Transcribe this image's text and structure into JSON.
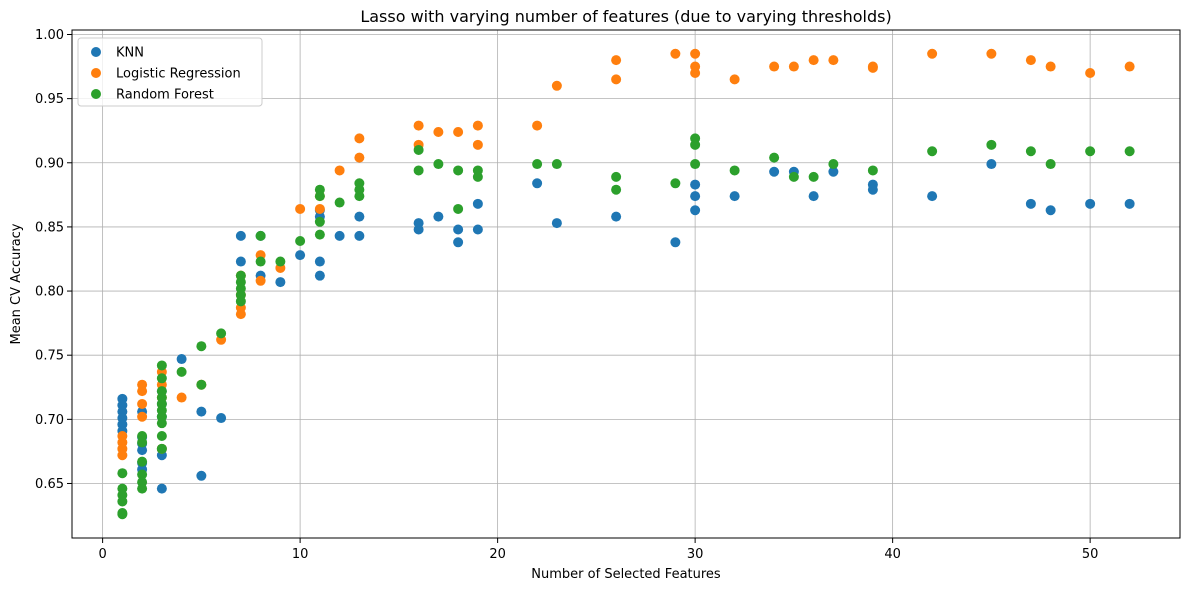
{
  "chart_data": {
    "type": "scatter",
    "title": "Lasso with varying number of features (due to varying thresholds)",
    "xlabel": "Number of Selected Features",
    "ylabel": "Mean CV Accuracy",
    "xlim": [
      -1.55,
      54.55
    ],
    "ylim": [
      0.6075,
      1.0035
    ],
    "xticks": [
      0,
      10,
      20,
      30,
      40,
      50
    ],
    "yticks": [
      0.65,
      0.7,
      0.75,
      0.8,
      0.85,
      0.9,
      0.95,
      1.0
    ],
    "xtick_labels": [
      "0",
      "10",
      "20",
      "30",
      "40",
      "50"
    ],
    "ytick_labels": [
      "0.65",
      "0.70",
      "0.75",
      "0.80",
      "0.85",
      "0.90",
      "0.95",
      "1.00"
    ],
    "grid": true,
    "legend_position": "top-left",
    "series": [
      {
        "name": "KNN",
        "color": "#1f77b4",
        "points": [
          [
            1,
            0.716
          ],
          [
            1,
            0.711
          ],
          [
            1,
            0.706
          ],
          [
            1,
            0.701
          ],
          [
            1,
            0.696
          ],
          [
            1,
            0.691
          ],
          [
            2,
            0.706
          ],
          [
            2,
            0.686
          ],
          [
            2,
            0.681
          ],
          [
            2,
            0.676
          ],
          [
            2,
            0.666
          ],
          [
            2,
            0.661
          ],
          [
            3,
            0.722
          ],
          [
            3,
            0.712
          ],
          [
            3,
            0.702
          ],
          [
            3,
            0.677
          ],
          [
            3,
            0.672
          ],
          [
            3,
            0.646
          ],
          [
            4,
            0.747
          ],
          [
            5,
            0.706
          ],
          [
            5,
            0.656
          ],
          [
            6,
            0.701
          ],
          [
            7,
            0.843
          ],
          [
            7,
            0.823
          ],
          [
            8,
            0.843
          ],
          [
            8,
            0.812
          ],
          [
            9,
            0.807
          ],
          [
            10,
            0.828
          ],
          [
            11,
            0.863
          ],
          [
            11,
            0.858
          ],
          [
            11,
            0.823
          ],
          [
            11,
            0.812
          ],
          [
            12,
            0.843
          ],
          [
            13,
            0.858
          ],
          [
            13,
            0.843
          ],
          [
            16,
            0.853
          ],
          [
            16,
            0.848
          ],
          [
            17,
            0.858
          ],
          [
            18,
            0.848
          ],
          [
            18,
            0.838
          ],
          [
            19,
            0.868
          ],
          [
            19,
            0.848
          ],
          [
            22,
            0.884
          ],
          [
            23,
            0.853
          ],
          [
            26,
            0.858
          ],
          [
            29,
            0.838
          ],
          [
            30,
            0.883
          ],
          [
            30,
            0.874
          ],
          [
            30,
            0.863
          ],
          [
            32,
            0.874
          ],
          [
            34,
            0.893
          ],
          [
            35,
            0.893
          ],
          [
            36,
            0.874
          ],
          [
            37,
            0.893
          ],
          [
            39,
            0.883
          ],
          [
            39,
            0.879
          ],
          [
            42,
            0.874
          ],
          [
            45,
            0.899
          ],
          [
            47,
            0.868
          ],
          [
            48,
            0.863
          ],
          [
            50,
            0.868
          ],
          [
            52,
            0.868
          ]
        ]
      },
      {
        "name": "Logistic Regression",
        "color": "#ff7f0e",
        "points": [
          [
            1,
            0.687
          ],
          [
            1,
            0.682
          ],
          [
            1,
            0.677
          ],
          [
            1,
            0.672
          ],
          [
            2,
            0.727
          ],
          [
            2,
            0.722
          ],
          [
            2,
            0.712
          ],
          [
            2,
            0.702
          ],
          [
            3,
            0.737
          ],
          [
            3,
            0.727
          ],
          [
            3,
            0.717
          ],
          [
            3,
            0.677
          ],
          [
            4,
            0.717
          ],
          [
            5,
            0.727
          ],
          [
            6,
            0.762
          ],
          [
            7,
            0.812
          ],
          [
            7,
            0.797
          ],
          [
            7,
            0.787
          ],
          [
            7,
            0.782
          ],
          [
            8,
            0.828
          ],
          [
            8,
            0.808
          ],
          [
            9,
            0.818
          ],
          [
            10,
            0.864
          ],
          [
            11,
            0.874
          ],
          [
            11,
            0.864
          ],
          [
            12,
            0.894
          ],
          [
            13,
            0.919
          ],
          [
            13,
            0.904
          ],
          [
            16,
            0.929
          ],
          [
            16,
            0.914
          ],
          [
            17,
            0.924
          ],
          [
            18,
            0.924
          ],
          [
            19,
            0.929
          ],
          [
            19,
            0.914
          ],
          [
            22,
            0.929
          ],
          [
            23,
            0.96
          ],
          [
            26,
            0.98
          ],
          [
            26,
            0.965
          ],
          [
            29,
            0.985
          ],
          [
            30,
            0.985
          ],
          [
            30,
            0.975
          ],
          [
            30,
            0.97
          ],
          [
            32,
            0.965
          ],
          [
            34,
            0.975
          ],
          [
            35,
            0.975
          ],
          [
            36,
            0.98
          ],
          [
            37,
            0.98
          ],
          [
            39,
            0.975
          ],
          [
            39,
            0.974
          ],
          [
            42,
            0.985
          ],
          [
            45,
            0.985
          ],
          [
            47,
            0.98
          ],
          [
            48,
            0.975
          ],
          [
            50,
            0.97
          ],
          [
            52,
            0.975
          ]
        ]
      },
      {
        "name": "Random Forest",
        "color": "#2ca02c",
        "points": [
          [
            1,
            0.658
          ],
          [
            1,
            0.646
          ],
          [
            1,
            0.641
          ],
          [
            1,
            0.636
          ],
          [
            1,
            0.627
          ],
          [
            1,
            0.626
          ],
          [
            2,
            0.687
          ],
          [
            2,
            0.682
          ],
          [
            2,
            0.667
          ],
          [
            2,
            0.657
          ],
          [
            2,
            0.651
          ],
          [
            2,
            0.646
          ],
          [
            3,
            0.742
          ],
          [
            3,
            0.732
          ],
          [
            3,
            0.722
          ],
          [
            3,
            0.717
          ],
          [
            3,
            0.712
          ],
          [
            3,
            0.707
          ],
          [
            3,
            0.702
          ],
          [
            3,
            0.697
          ],
          [
            3,
            0.687
          ],
          [
            3,
            0.677
          ],
          [
            4,
            0.737
          ],
          [
            5,
            0.757
          ],
          [
            5,
            0.727
          ],
          [
            6,
            0.767
          ],
          [
            7,
            0.812
          ],
          [
            7,
            0.807
          ],
          [
            7,
            0.802
          ],
          [
            7,
            0.797
          ],
          [
            7,
            0.792
          ],
          [
            8,
            0.843
          ],
          [
            8,
            0.823
          ],
          [
            9,
            0.823
          ],
          [
            10,
            0.839
          ],
          [
            11,
            0.879
          ],
          [
            11,
            0.874
          ],
          [
            11,
            0.854
          ],
          [
            11,
            0.844
          ],
          [
            12,
            0.869
          ],
          [
            13,
            0.884
          ],
          [
            13,
            0.879
          ],
          [
            13,
            0.874
          ],
          [
            16,
            0.91
          ],
          [
            16,
            0.894
          ],
          [
            17,
            0.899
          ],
          [
            18,
            0.894
          ],
          [
            18,
            0.864
          ],
          [
            19,
            0.894
          ],
          [
            19,
            0.889
          ],
          [
            22,
            0.899
          ],
          [
            23,
            0.899
          ],
          [
            26,
            0.889
          ],
          [
            26,
            0.879
          ],
          [
            29,
            0.884
          ],
          [
            30,
            0.919
          ],
          [
            30,
            0.914
          ],
          [
            30,
            0.899
          ],
          [
            32,
            0.894
          ],
          [
            34,
            0.904
          ],
          [
            35,
            0.889
          ],
          [
            36,
            0.889
          ],
          [
            37,
            0.899
          ],
          [
            39,
            0.894
          ],
          [
            42,
            0.909
          ],
          [
            45,
            0.914
          ],
          [
            47,
            0.909
          ],
          [
            48,
            0.899
          ],
          [
            50,
            0.909
          ],
          [
            52,
            0.909
          ]
        ]
      }
    ]
  }
}
